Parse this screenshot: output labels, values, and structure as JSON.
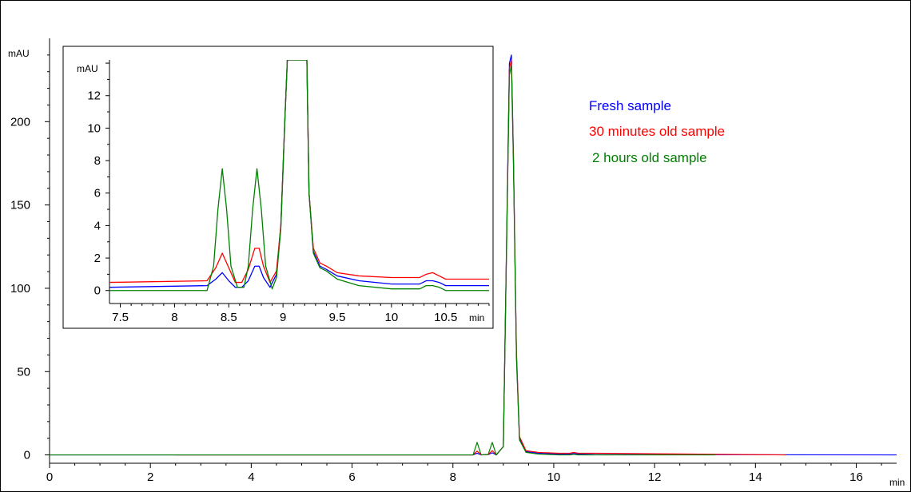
{
  "chart_data": {
    "type": "line",
    "title": "",
    "xlabel": "min",
    "ylabel": "mAU",
    "xlim": [
      0,
      16.8
    ],
    "ylim": [
      -5,
      250
    ],
    "x_ticks": [
      0,
      2,
      4,
      6,
      8,
      10,
      12,
      14,
      16
    ],
    "y_ticks": [
      0,
      50,
      100,
      150,
      200
    ],
    "legend_position": "top-right",
    "series": [
      {
        "name": "Fresh sample",
        "color": "#0000ff",
        "x": [
          0,
          2.4,
          8.4,
          8.48,
          8.56,
          8.7,
          8.78,
          8.86,
          9.0,
          9.06,
          9.12,
          9.16,
          9.2,
          9.26,
          9.32,
          9.45,
          9.7,
          10.1,
          10.32,
          10.4,
          10.48,
          10.8,
          16.8
        ],
        "y": [
          0,
          0,
          0,
          1,
          0,
          0.2,
          1.3,
          0,
          5,
          120,
          235,
          240,
          180,
          60,
          10,
          2,
          1,
          0.5,
          0.5,
          0.9,
          0.5,
          0.2,
          0
        ]
      },
      {
        "name": "30 minutes old sample",
        "color": "#ff0000",
        "x": [
          2.5,
          8.4,
          8.48,
          8.56,
          8.7,
          8.78,
          8.86,
          9.0,
          9.06,
          9.12,
          9.16,
          9.2,
          9.26,
          9.32,
          9.45,
          9.7,
          10.1,
          10.32,
          10.4,
          10.48,
          10.8,
          14.6
        ],
        "y": [
          0,
          0,
          2.3,
          0,
          0.2,
          2.6,
          0,
          5,
          118,
          232,
          237,
          178,
          62,
          11,
          2.5,
          1.5,
          1,
          1,
          1.5,
          1,
          1,
          0
        ]
      },
      {
        "name": "2 hours old sample",
        "color": "#008000",
        "x": [
          0,
          2.4,
          8.4,
          8.48,
          8.56,
          8.7,
          8.78,
          8.86,
          9.0,
          9.06,
          9.12,
          9.16,
          9.2,
          9.26,
          9.32,
          9.45,
          9.7,
          10.1,
          10.32,
          10.4,
          10.48,
          10.8,
          13.2
        ],
        "y": [
          0,
          0,
          0,
          7.5,
          0,
          0.3,
          7.5,
          0,
          5,
          116,
          228,
          234,
          175,
          58,
          9,
          1.5,
          0.5,
          0,
          0,
          0.4,
          0,
          0,
          0
        ]
      }
    ],
    "inset": {
      "xlabel": "min",
      "ylabel": "mAU",
      "xlim": [
        7.4,
        10.9
      ],
      "ylim": [
        -0.8,
        14.2
      ],
      "x_ticks": [
        "7.5",
        "8",
        "8.5",
        "9",
        "9.5",
        "10",
        "10.5"
      ],
      "y_ticks": [
        0,
        2,
        4,
        6,
        8,
        10,
        12
      ],
      "series": [
        {
          "name": "Fresh sample",
          "color": "#0000ff",
          "x": [
            7.4,
            8.3,
            8.38,
            8.44,
            8.5,
            8.56,
            8.62,
            8.68,
            8.74,
            8.78,
            8.82,
            8.88,
            8.94,
            8.98,
            9.02,
            9.04,
            9.22,
            9.24,
            9.28,
            9.34,
            9.4,
            9.5,
            9.7,
            10.0,
            10.26,
            10.32,
            10.38,
            10.44,
            10.5,
            10.9
          ],
          "y": [
            0.2,
            0.3,
            0.7,
            1.1,
            0.6,
            0.2,
            0.2,
            0.6,
            1.5,
            1.5,
            0.8,
            0.2,
            1.0,
            4.0,
            11.0,
            14.2,
            14.2,
            6.0,
            2.4,
            1.5,
            1.3,
            0.9,
            0.6,
            0.4,
            0.4,
            0.6,
            0.6,
            0.5,
            0.3,
            0.3
          ]
        },
        {
          "name": "30 minutes old sample",
          "color": "#ff0000",
          "x": [
            7.4,
            8.3,
            8.38,
            8.44,
            8.5,
            8.56,
            8.62,
            8.68,
            8.74,
            8.78,
            8.82,
            8.88,
            8.94,
            8.98,
            9.02,
            9.04,
            9.22,
            9.24,
            9.28,
            9.34,
            9.4,
            9.5,
            9.7,
            10.0,
            10.26,
            10.32,
            10.38,
            10.44,
            10.5,
            10.9
          ],
          "y": [
            0.5,
            0.6,
            1.4,
            2.3,
            1.4,
            0.5,
            0.5,
            1.3,
            2.6,
            2.6,
            1.5,
            0.5,
            1.2,
            4.0,
            11.0,
            14.2,
            14.2,
            6.0,
            2.6,
            1.7,
            1.5,
            1.1,
            0.9,
            0.8,
            0.8,
            1.0,
            1.1,
            0.9,
            0.7,
            0.7
          ]
        },
        {
          "name": "2 hours old sample",
          "color": "#008000",
          "x": [
            7.4,
            8.3,
            8.36,
            8.4,
            8.44,
            8.48,
            8.52,
            8.58,
            8.64,
            8.68,
            8.72,
            8.76,
            8.8,
            8.84,
            8.9,
            8.94,
            8.98,
            9.02,
            9.04,
            9.22,
            9.24,
            9.28,
            9.34,
            9.4,
            9.5,
            9.7,
            10.0,
            10.26,
            10.32,
            10.38,
            10.44,
            10.5,
            10.9
          ],
          "y": [
            0,
            0,
            1.5,
            5.0,
            7.5,
            5.0,
            1.5,
            0.2,
            0.2,
            1.5,
            5.0,
            7.5,
            5.0,
            1.5,
            0.1,
            0.8,
            3.8,
            11.0,
            14.2,
            14.2,
            6.0,
            2.3,
            1.4,
            1.2,
            0.7,
            0.3,
            0.1,
            0.1,
            0.3,
            0.3,
            0.2,
            0,
            0
          ]
        }
      ]
    }
  }
}
